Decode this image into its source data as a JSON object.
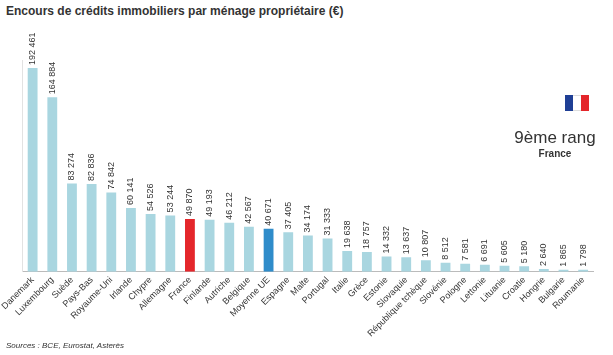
{
  "chart_data": {
    "type": "bar",
    "title": "Encours de crédits immobiliers par ménage propriétaire (€)",
    "categories": [
      "Danemark",
      "Luxembourg",
      "Suède",
      "Pays-Bas",
      "Royaume-Uni",
      "Irlande",
      "Chypre",
      "Allemagne",
      "France",
      "Finlande",
      "Autriche",
      "Belgique",
      "Moyenne UE",
      "Espagne",
      "Malte",
      "Portugal",
      "Italie",
      "Grèce",
      "Estonie",
      "Slovaquie",
      "République tchèque",
      "Slovénie",
      "Pologne",
      "Lettonie",
      "Lituanie",
      "Croatie",
      "Hongrie",
      "Bulgarie",
      "Roumanie"
    ],
    "values": [
      192461,
      164884,
      83274,
      82836,
      74842,
      60141,
      54526,
      53244,
      49870,
      49193,
      46212,
      42567,
      40671,
      37405,
      34174,
      31333,
      19638,
      18757,
      14332,
      13637,
      10807,
      8512,
      7581,
      6691,
      5605,
      5180,
      2640,
      1865,
      1798
    ],
    "value_labels": [
      "192 461",
      "164 884",
      "83 274",
      "82 836",
      "74 842",
      "60 141",
      "54 526",
      "53 244",
      "49 870",
      "49 193",
      "46 212",
      "42 567",
      "40 671",
      "37 405",
      "34 174",
      "31 333",
      "19 638",
      "18 757",
      "14 332",
      "13 637",
      "10 807",
      "8 512",
      "7 581",
      "6 691",
      "5 605",
      "5 180",
      "2 640",
      "1 865",
      "1 798"
    ],
    "colors": [
      "#a9d6e0",
      "#a9d6e0",
      "#a9d6e0",
      "#a9d6e0",
      "#a9d6e0",
      "#a9d6e0",
      "#a9d6e0",
      "#a9d6e0",
      "#e4262b",
      "#a9d6e0",
      "#a9d6e0",
      "#a9d6e0",
      "#2f8cca",
      "#a9d6e0",
      "#a9d6e0",
      "#a9d6e0",
      "#a9d6e0",
      "#a9d6e0",
      "#a9d6e0",
      "#a9d6e0",
      "#a9d6e0",
      "#a9d6e0",
      "#a9d6e0",
      "#a9d6e0",
      "#a9d6e0",
      "#a9d6e0",
      "#a9d6e0",
      "#a9d6e0",
      "#a9d6e0"
    ],
    "ylim": [
      0,
      200000
    ],
    "grid": false,
    "tick_labels": "x",
    "data_labels": true,
    "annotations": [
      "9ème rang",
      "France"
    ],
    "source": "Sources : BCE, Eurostat, Asterès"
  }
}
